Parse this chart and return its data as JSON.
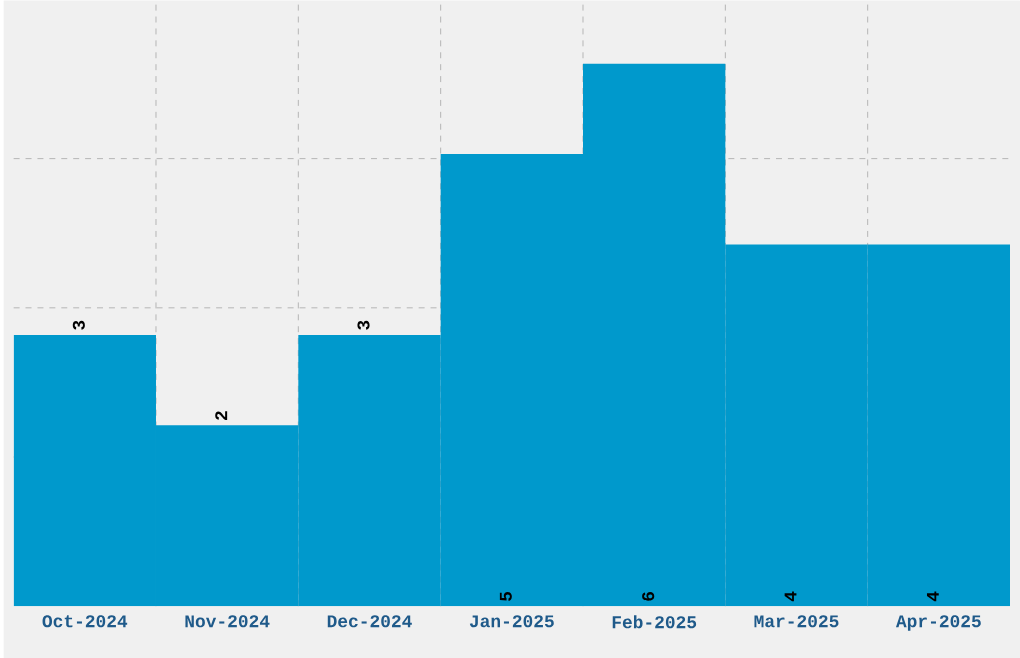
{
  "chart_data": {
    "type": "bar",
    "categories": [
      "Oct-2024",
      "Nov-2024",
      "Dec-2024",
      "Jan-2025",
      "Feb-2025",
      "Mar-2025",
      "Apr-2025"
    ],
    "values": [
      3,
      2,
      3,
      5,
      6,
      4,
      4
    ],
    "color": "#0099cc",
    "data_labels": true,
    "ylim": [
      0,
      6.7
    ],
    "yticks": [
      {
        "value": 1.65,
        "label": null
      },
      {
        "value": 3.3,
        "label": null
      },
      {
        "value": 4.95,
        "label": null
      }
    ],
    "tick_labels": "x",
    "grid": true
  }
}
